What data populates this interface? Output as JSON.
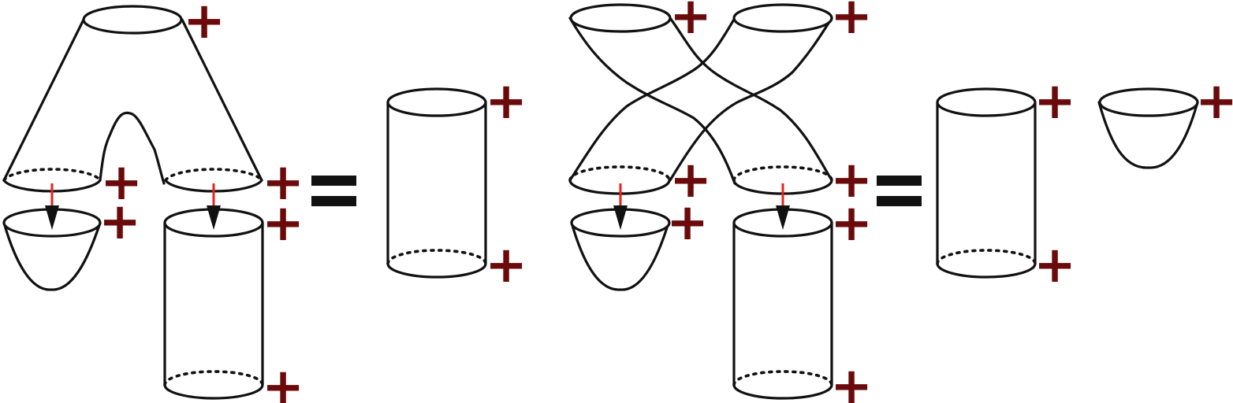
{
  "colors": {
    "stroke": "#111111",
    "sign": "#6b0a0a",
    "arrow_shaft": "#e8231e",
    "arrow_head": "#111111",
    "equals": "#111111"
  },
  "signs": {
    "plus": "+"
  },
  "equations": [
    {
      "left": [
        "pair-of-pants",
        "cap",
        "cylinder"
      ],
      "right": [
        "cylinder"
      ]
    },
    {
      "left": [
        "crossed-cylinders",
        "cap",
        "cylinder"
      ],
      "right": [
        "cylinder",
        "cap"
      ]
    }
  ]
}
